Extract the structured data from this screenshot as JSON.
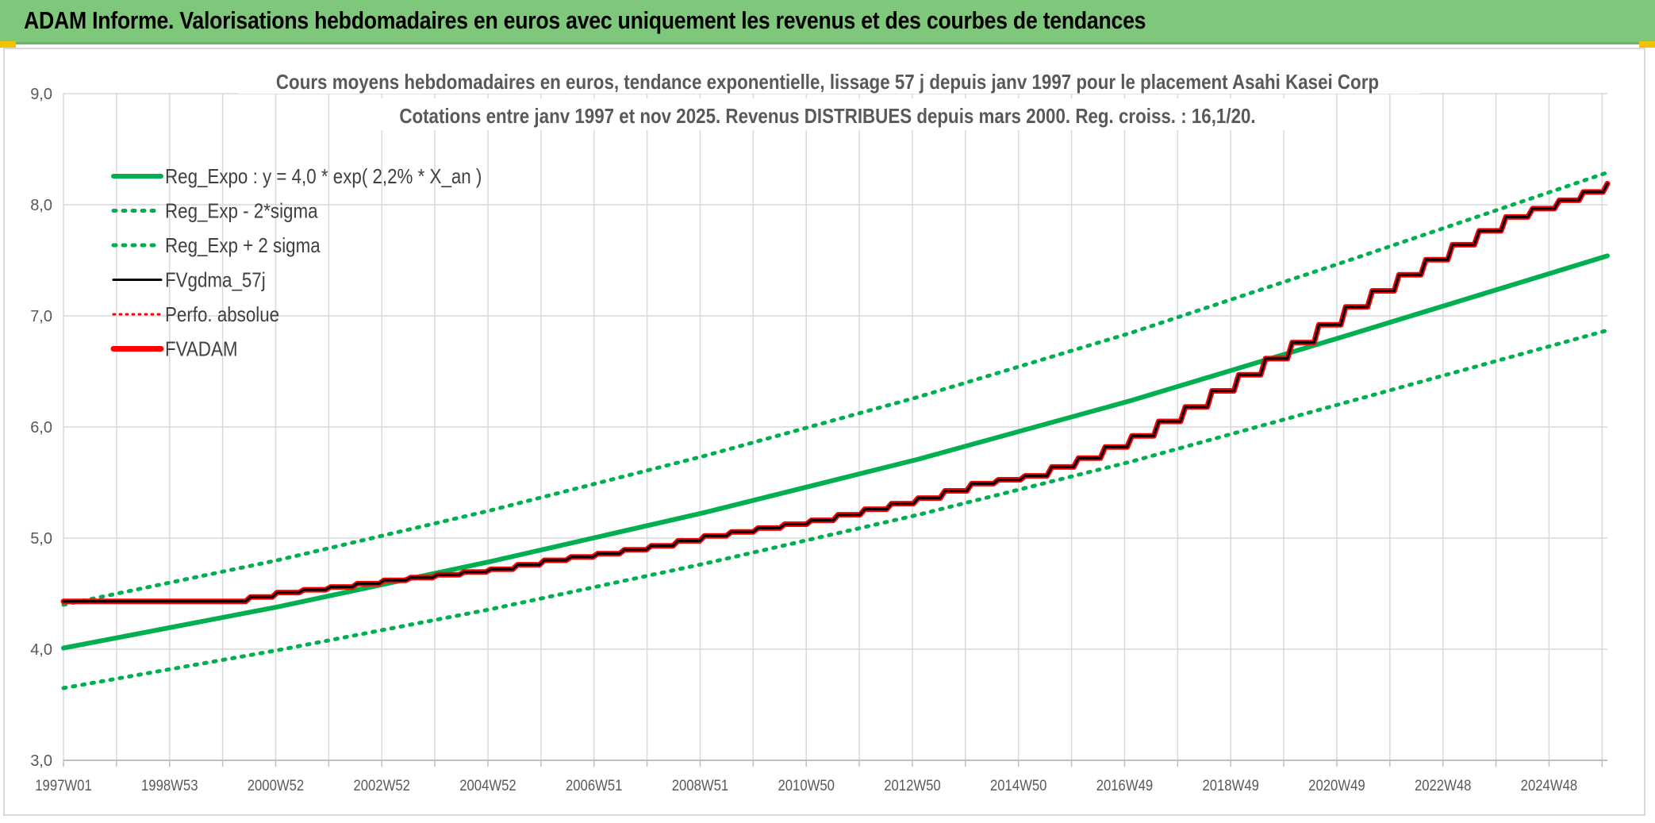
{
  "banner": {
    "title": "ADAM Informe. Valorisations hebdomadaires en euros avec uniquement les revenus et des courbes de tendances"
  },
  "colors": {
    "banner_bg": "#7fc77a",
    "corner_mark": "#f2c200",
    "green": "#00b050",
    "red": "#ff0000",
    "black": "#000000",
    "grid": "#d9d9d9"
  },
  "chart_data": {
    "type": "line",
    "title": [
      "Cours moyens hebdomadaires en euros, tendance exponentielle, lissage 57 j depuis janv 1997 pour le placement Asahi Kasei Corp",
      "Cotations entre janv 1997 et nov 2025. Revenus DISTRIBUES depuis mars 2000. Reg. croiss. : 16,1/20."
    ],
    "xlabel": "",
    "ylabel": "",
    "ylim": [
      3.0,
      9.0
    ],
    "xlim": [
      1997.0,
      2025.9
    ],
    "y_ticks": [
      "3,0",
      "4,0",
      "5,0",
      "6,0",
      "7,0",
      "8,0",
      "9,0"
    ],
    "x_ticks": [
      "1997W01",
      "1998W53",
      "2000W52",
      "2002W52",
      "2004W52",
      "2006W51",
      "2008W51",
      "2010W50",
      "2012W50",
      "2014W50",
      "2016W49",
      "2018W49",
      "2020W49",
      "2022W48",
      "2024W48"
    ],
    "grid": true,
    "legend_position": "top-left",
    "series": [
      {
        "name": "Reg_Expo : y = 4,0 * exp( 2,2% *  X_an )",
        "color": "#00b050",
        "style": "solid",
        "x": [
          1997.0,
          2001.0,
          2005.0,
          2009.0,
          2013.0,
          2017.0,
          2021.0,
          2025.9
        ],
        "y": [
          4.01,
          4.38,
          4.79,
          5.23,
          5.71,
          6.24,
          6.82,
          7.54
        ]
      },
      {
        "name": "Reg_Exp - 2*sigma",
        "color": "#00b050",
        "style": "dotted",
        "x": [
          1997.0,
          2001.0,
          2005.0,
          2009.0,
          2013.0,
          2017.0,
          2021.0,
          2025.9
        ],
        "y": [
          3.65,
          3.99,
          4.36,
          4.77,
          5.21,
          5.69,
          6.22,
          6.87
        ]
      },
      {
        "name": "Reg_Exp + 2 sigma",
        "color": "#00b050",
        "style": "dotted",
        "x": [
          1997.0,
          2001.0,
          2005.0,
          2009.0,
          2013.0,
          2017.0,
          2021.0,
          2025.9
        ],
        "y": [
          4.4,
          4.8,
          5.25,
          5.74,
          6.27,
          6.85,
          7.49,
          8.29
        ]
      },
      {
        "name": "FVgdma_57j",
        "color": "#000000",
        "style": "solid",
        "x": [
          1997.0,
          1999.0,
          2000.0,
          2001.0,
          2002.0,
          2003.0,
          2004.0,
          2005.0,
          2006.0,
          2007.0,
          2008.0,
          2009.0,
          2010.0,
          2011.0,
          2012.0,
          2013.0,
          2014.0,
          2015.0,
          2016.0,
          2017.0,
          2018.0,
          2019.0,
          2020.0,
          2021.0,
          2022.0,
          2023.0,
          2024.0,
          2025.0,
          2025.9
        ],
        "y": [
          4.43,
          4.43,
          4.43,
          4.51,
          4.56,
          4.62,
          4.67,
          4.72,
          4.8,
          4.86,
          4.93,
          5.02,
          5.09,
          5.16,
          5.26,
          5.36,
          5.49,
          5.56,
          5.72,
          5.92,
          6.18,
          6.47,
          6.76,
          7.08,
          7.37,
          7.64,
          7.89,
          8.04,
          8.19
        ]
      },
      {
        "name": "Perfo. absolue",
        "color": "#ff0000",
        "style": "dotted",
        "x": [
          1997.0,
          1999.0,
          2000.0,
          2001.0,
          2002.0,
          2003.0,
          2004.0,
          2005.0,
          2006.0,
          2007.0,
          2008.0,
          2009.0,
          2010.0,
          2011.0,
          2012.0,
          2013.0,
          2014.0,
          2015.0,
          2016.0,
          2017.0,
          2018.0,
          2019.0,
          2020.0,
          2021.0,
          2022.0,
          2023.0,
          2024.0,
          2025.0,
          2025.9
        ],
        "y": [
          4.43,
          4.43,
          4.43,
          4.51,
          4.56,
          4.62,
          4.67,
          4.72,
          4.8,
          4.86,
          4.93,
          5.02,
          5.09,
          5.16,
          5.26,
          5.36,
          5.49,
          5.56,
          5.72,
          5.92,
          6.18,
          6.47,
          6.76,
          7.08,
          7.37,
          7.64,
          7.89,
          8.04,
          8.19
        ]
      },
      {
        "name": "FVADAM",
        "color": "#ff0000",
        "style": "solid",
        "x": [
          1997.0,
          1999.0,
          2000.0,
          2001.0,
          2002.0,
          2003.0,
          2004.0,
          2005.0,
          2006.0,
          2007.0,
          2008.0,
          2009.0,
          2010.0,
          2011.0,
          2012.0,
          2013.0,
          2014.0,
          2015.0,
          2016.0,
          2017.0,
          2018.0,
          2019.0,
          2020.0,
          2021.0,
          2022.0,
          2023.0,
          2024.0,
          2025.0,
          2025.9
        ],
        "y": [
          4.43,
          4.43,
          4.43,
          4.51,
          4.56,
          4.62,
          4.67,
          4.72,
          4.8,
          4.86,
          4.93,
          5.02,
          5.09,
          5.16,
          5.26,
          5.36,
          5.49,
          5.56,
          5.72,
          5.92,
          6.18,
          6.47,
          6.76,
          7.08,
          7.37,
          7.64,
          7.89,
          8.04,
          8.19
        ]
      }
    ]
  }
}
